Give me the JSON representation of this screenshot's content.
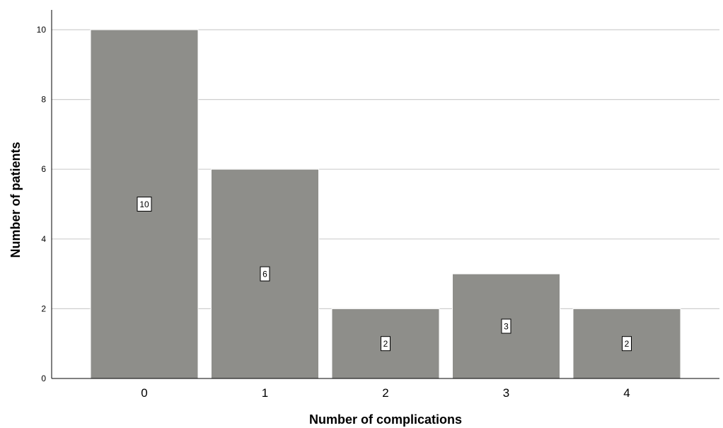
{
  "chart_data": {
    "type": "bar",
    "title": "",
    "xlabel": "Number of complications",
    "ylabel": "Number of patients",
    "categories": [
      "0",
      "1",
      "2",
      "3",
      "4"
    ],
    "values": [
      10,
      6,
      2,
      3,
      2
    ],
    "data_labels": [
      "10",
      "6",
      "2",
      "3",
      "2"
    ],
    "ylim": [
      0,
      10
    ],
    "y_ticks": [
      "0",
      "2",
      "4",
      "6",
      "8",
      "10"
    ],
    "grid": true,
    "legend": "none",
    "colors": {
      "bar": "#8e8e8a",
      "bar_edge": "#ffffff",
      "grid": "#cfcfcf",
      "axis": "#000000",
      "label_box_fill": "#ffffff",
      "label_box_stroke": "#000000"
    }
  }
}
